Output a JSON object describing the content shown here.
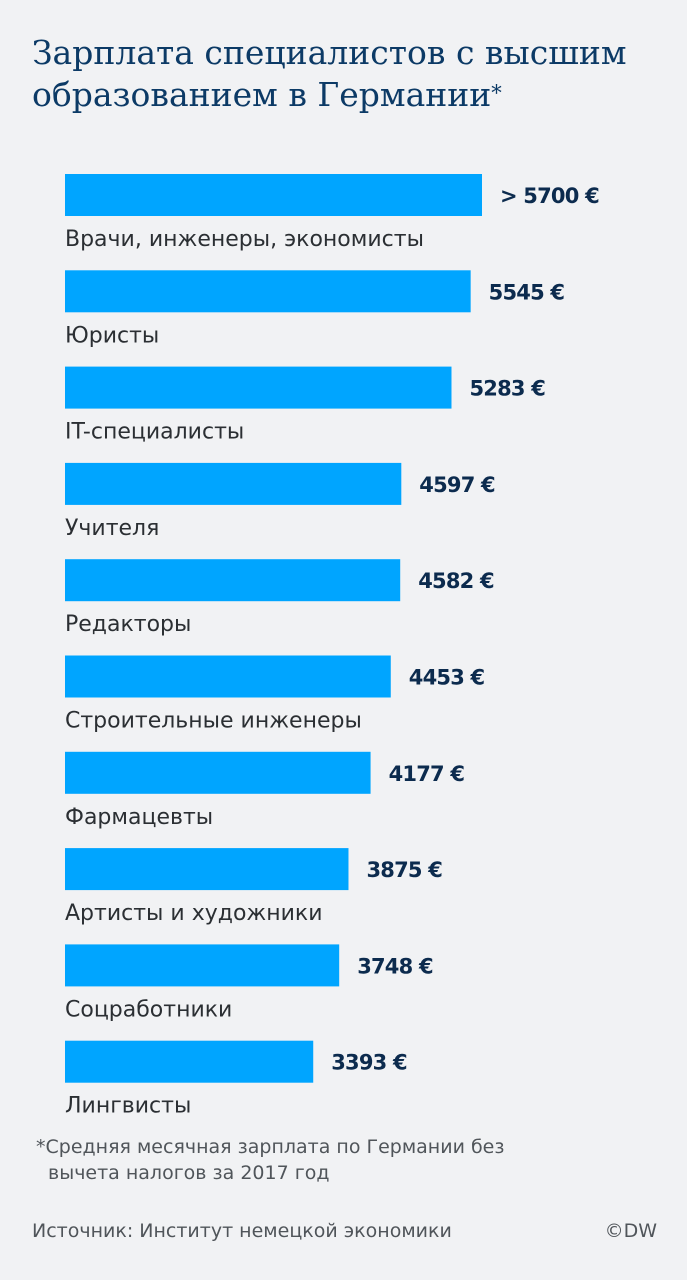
{
  "header": {
    "title": "Зарплата специалистов с высшим образованием в Германии",
    "title_marker": "*"
  },
  "chart_data": {
    "type": "bar",
    "orientation": "horizontal",
    "title": "Зарплата специалистов с высшим образованием в Германии*",
    "xlabel": "",
    "ylabel": "",
    "grid": false,
    "xlim": [
      0,
      5700
    ],
    "unit": "€",
    "bar_color": "#00a5ff",
    "value_label_color": "#0c2b4e",
    "categories": [
      "Врачи, инженеры, экономисты",
      "Юристы",
      "IT-специалисты",
      "Учителя",
      "Редакторы",
      "Строительные инженеры",
      "Фармацевты",
      "Артисты и художники",
      "Соцработники",
      "Лингвисты"
    ],
    "values": [
      5700,
      5545,
      5283,
      4597,
      4582,
      4453,
      4177,
      3875,
      3748,
      3393
    ],
    "value_labels": [
      "> 5700 €",
      "5545 €",
      "5283 €",
      "4597 €",
      "4582 €",
      "4453 €",
      "4177 €",
      "3875 €",
      "3748 €",
      "3393 €"
    ]
  },
  "footer": {
    "footnote": "*Средняя месячная зарплата по Германии без вычета налогов за 2017 год",
    "source": "Источник: Институт немецкой экономики",
    "credit": "©DW"
  }
}
